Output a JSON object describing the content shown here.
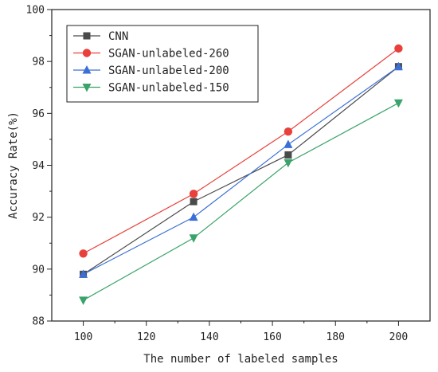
{
  "chart_data": {
    "type": "line",
    "xlabel": "The number of labeled samples",
    "ylabel": "Accuracy Rate(%)",
    "xlim": [
      90,
      210
    ],
    "ylim": [
      88,
      100
    ],
    "x_ticks": [
      100,
      120,
      140,
      160,
      180,
      200
    ],
    "y_ticks": [
      88,
      90,
      92,
      94,
      96,
      98,
      100
    ],
    "x": [
      100,
      135,
      165,
      200
    ],
    "grid": false,
    "legend_position": "top-left",
    "series": [
      {
        "name": "CNN",
        "values": [
          89.8,
          92.6,
          94.4,
          97.8
        ],
        "color": "#4a4a4a",
        "marker": "square"
      },
      {
        "name": "SGAN-unlabeled-260",
        "values": [
          90.6,
          92.9,
          95.3,
          98.5
        ],
        "color": "#e8403a",
        "marker": "circle"
      },
      {
        "name": "SGAN-unlabeled-200",
        "values": [
          89.8,
          92.0,
          94.8,
          97.8
        ],
        "color": "#3b6fd6",
        "marker": "triangle-up"
      },
      {
        "name": "SGAN-unlabeled-150",
        "values": [
          88.8,
          91.2,
          94.1,
          96.4
        ],
        "color": "#3aa36a",
        "marker": "triangle-down"
      }
    ]
  }
}
